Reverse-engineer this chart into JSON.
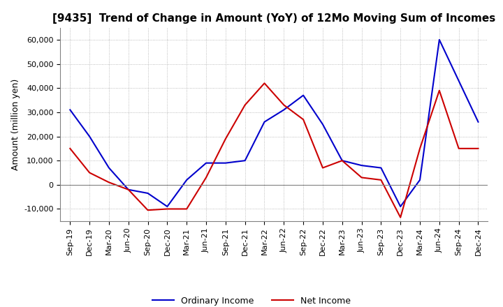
{
  "title": "[9435]  Trend of Change in Amount (YoY) of 12Mo Moving Sum of Incomes",
  "ylabel": "Amount (million yen)",
  "ylim": [
    -15000,
    65000
  ],
  "yticks": [
    -10000,
    0,
    10000,
    20000,
    30000,
    40000,
    50000,
    60000
  ],
  "x_labels": [
    "Sep-19",
    "Dec-19",
    "Mar-20",
    "Jun-20",
    "Sep-20",
    "Dec-20",
    "Mar-21",
    "Jun-21",
    "Sep-21",
    "Dec-21",
    "Mar-22",
    "Jun-22",
    "Sep-22",
    "Dec-22",
    "Mar-23",
    "Jun-23",
    "Sep-23",
    "Dec-23",
    "Mar-24",
    "Jun-24",
    "Sep-24",
    "Dec-24"
  ],
  "ordinary_income": [
    31000,
    20000,
    7000,
    -2000,
    -3500,
    -9000,
    2000,
    9000,
    9000,
    10000,
    26000,
    31000,
    37000,
    25000,
    10000,
    8000,
    7000,
    -9000,
    2000,
    60000,
    43000,
    26000
  ],
  "net_income": [
    15000,
    5000,
    1000,
    -2000,
    -10500,
    -10000,
    -10000,
    3000,
    19000,
    33000,
    42000,
    33000,
    27000,
    7000,
    10000,
    3000,
    2000,
    -13500,
    15000,
    39000,
    15000,
    15000
  ],
  "ordinary_color": "#0000cc",
  "net_color": "#cc0000",
  "grid_color": "#aaaaaa",
  "grid_style": "dotted",
  "background_color": "#ffffff",
  "line_width": 1.5,
  "title_fontsize": 11,
  "axis_fontsize": 8,
  "ylabel_fontsize": 9
}
